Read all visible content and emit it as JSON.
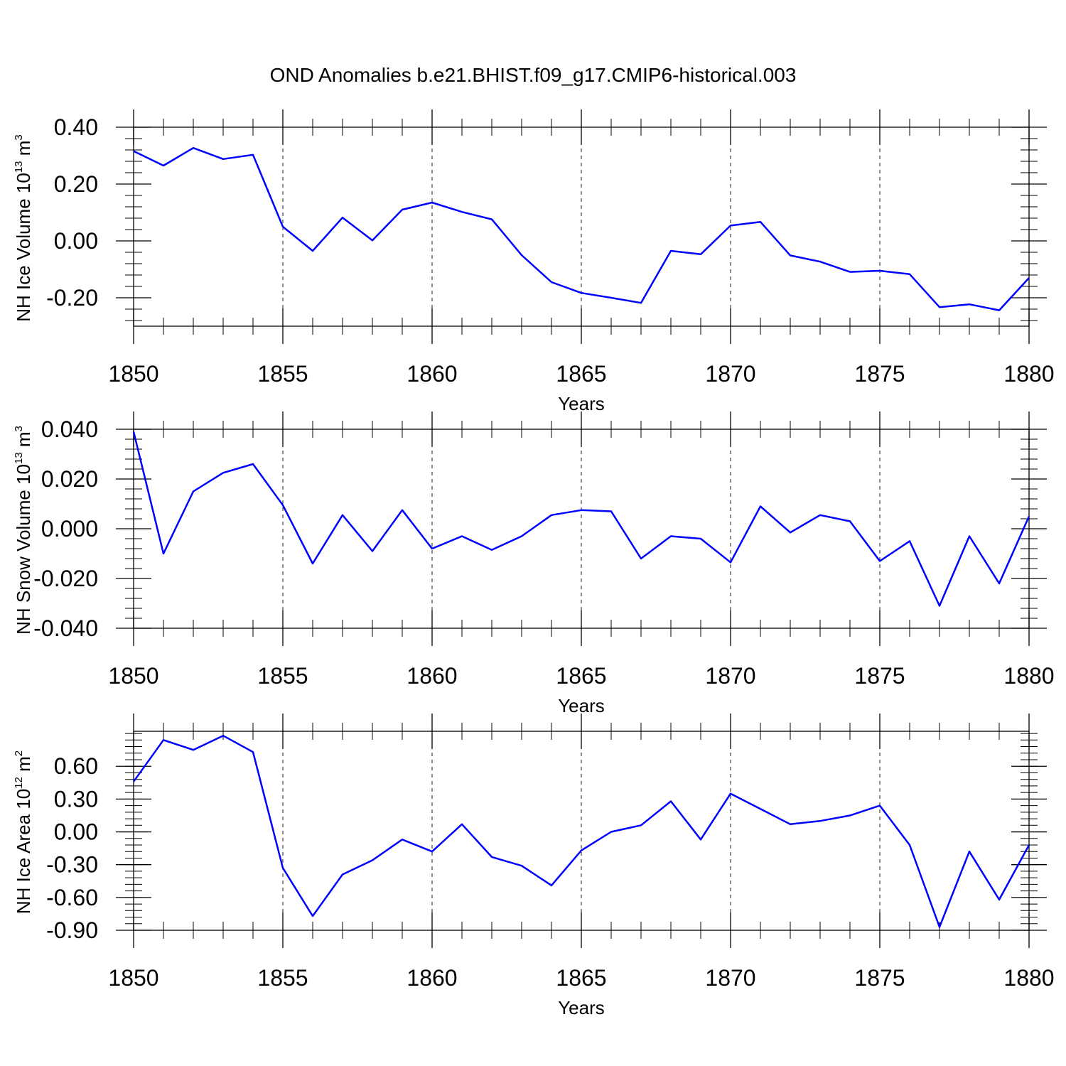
{
  "title": "OND Anomalies b.e21.BHIST.f09_g17.CMIP6-historical.003",
  "line_color": "#0000ff",
  "chart_data": [
    {
      "type": "line",
      "ylabel": {
        "main": "NH Ice Volume 10",
        "sup": "13",
        "unit": " m",
        "unit_sup": "3"
      },
      "xlabel": "Years",
      "xlim": [
        1850,
        1880
      ],
      "ylim": [
        -0.3,
        0.4
      ],
      "x_ticks": [
        "1850",
        "1855",
        "1860",
        "1865",
        "1870",
        "1875",
        "1880"
      ],
      "y_ticks": [
        {
          "v": 0.4,
          "label": "0.40"
        },
        {
          "v": 0.2,
          "label": "0.20"
        },
        {
          "v": 0.0,
          "label": "0.00"
        },
        {
          "v": -0.2,
          "label": "-0.20"
        }
      ],
      "y_minor_step": 0.04,
      "x": [
        1850,
        1851,
        1852,
        1853,
        1854,
        1855,
        1856,
        1857,
        1858,
        1859,
        1860,
        1861,
        1862,
        1863,
        1864,
        1865,
        1866,
        1867,
        1868,
        1869,
        1870,
        1871,
        1872,
        1873,
        1874,
        1875,
        1876,
        1877,
        1878,
        1879,
        1880
      ],
      "values": [
        0.316,
        0.265,
        0.327,
        0.288,
        0.303,
        0.05,
        -0.035,
        0.082,
        0.002,
        0.11,
        0.135,
        0.102,
        0.076,
        -0.05,
        -0.145,
        -0.183,
        -0.2,
        -0.218,
        -0.035,
        -0.047,
        0.054,
        0.067,
        -0.051,
        -0.073,
        -0.109,
        -0.105,
        -0.117,
        -0.233,
        -0.223,
        -0.244,
        -0.13
      ]
    },
    {
      "type": "line",
      "ylabel": {
        "main": "NH Snow Volume 10",
        "sup": "13",
        "unit": " m",
        "unit_sup": "3"
      },
      "xlabel": "Years",
      "xlim": [
        1850,
        1880
      ],
      "ylim": [
        -0.04,
        0.04
      ],
      "x_ticks": [
        "1850",
        "1855",
        "1860",
        "1865",
        "1870",
        "1875",
        "1880"
      ],
      "y_ticks": [
        {
          "v": 0.04,
          "label": "0.040"
        },
        {
          "v": 0.02,
          "label": "0.020"
        },
        {
          "v": 0.0,
          "label": "0.000"
        },
        {
          "v": -0.02,
          "label": "-0.020"
        },
        {
          "v": -0.04,
          "label": "-0.040"
        }
      ],
      "y_minor_step": 0.004,
      "x": [
        1850,
        1851,
        1852,
        1853,
        1854,
        1855,
        1856,
        1857,
        1858,
        1859,
        1860,
        1861,
        1862,
        1863,
        1864,
        1865,
        1866,
        1867,
        1868,
        1869,
        1870,
        1871,
        1872,
        1873,
        1874,
        1875,
        1876,
        1877,
        1878,
        1879,
        1880
      ],
      "values": [
        0.039,
        -0.01,
        0.015,
        0.0225,
        0.026,
        0.0095,
        -0.014,
        0.0055,
        -0.009,
        0.0075,
        -0.008,
        -0.003,
        -0.0085,
        -0.003,
        0.0055,
        0.0075,
        0.007,
        -0.012,
        -0.003,
        -0.004,
        -0.0135,
        0.009,
        -0.0015,
        0.0055,
        0.003,
        -0.013,
        -0.005,
        -0.031,
        -0.003,
        -0.022,
        0.005
      ]
    },
    {
      "type": "line",
      "ylabel": {
        "main": "NH Ice Area 10",
        "sup": "12",
        "unit": " m",
        "unit_sup": "2"
      },
      "xlabel": "Years",
      "xlim": [
        1850,
        1880
      ],
      "ylim": [
        -0.9,
        0.92
      ],
      "x_ticks": [
        "1850",
        "1855",
        "1860",
        "1865",
        "1870",
        "1875",
        "1880"
      ],
      "y_ticks": [
        {
          "v": 0.6,
          "label": "0.60"
        },
        {
          "v": 0.3,
          "label": "0.30"
        },
        {
          "v": 0.0,
          "label": "0.00"
        },
        {
          "v": -0.3,
          "label": "-0.30"
        },
        {
          "v": -0.6,
          "label": "-0.60"
        },
        {
          "v": -0.9,
          "label": "-0.90"
        }
      ],
      "y_minor_step": 0.06,
      "x": [
        1850,
        1851,
        1852,
        1853,
        1854,
        1855,
        1856,
        1857,
        1858,
        1859,
        1860,
        1861,
        1862,
        1863,
        1864,
        1865,
        1866,
        1867,
        1868,
        1869,
        1870,
        1871,
        1872,
        1873,
        1874,
        1875,
        1876,
        1877,
        1878,
        1879,
        1880
      ],
      "values": [
        0.46,
        0.84,
        0.75,
        0.88,
        0.73,
        -0.33,
        -0.77,
        -0.39,
        -0.26,
        -0.07,
        -0.18,
        0.07,
        -0.23,
        -0.31,
        -0.49,
        -0.17,
        0.0,
        0.06,
        0.28,
        -0.07,
        0.35,
        0.21,
        0.07,
        0.1,
        0.15,
        0.24,
        -0.12,
        -0.87,
        -0.18,
        -0.62,
        -0.12
      ]
    }
  ]
}
